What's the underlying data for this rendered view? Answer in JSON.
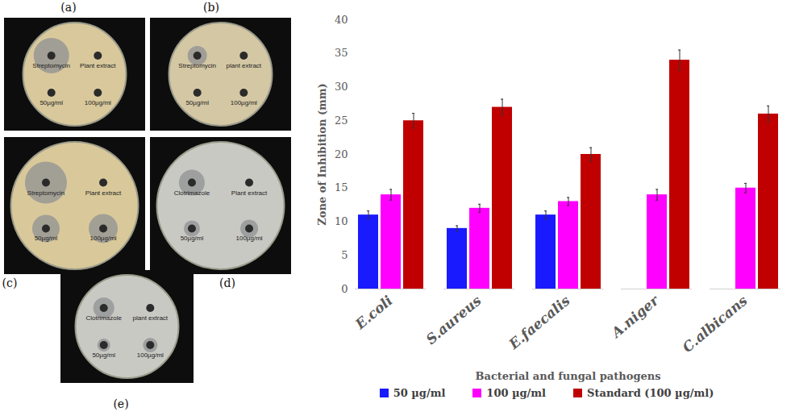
{
  "chart_data": {
    "type": "bar",
    "categories": [
      "E.coli",
      "S.aureus",
      "E.faecalis",
      "A.niger",
      "C.albicans"
    ],
    "x_label": "Bacterial and fungal pathogens",
    "y_label": "Zone of Inhibition (mm)",
    "series": [
      {
        "name": "50 µg/ml",
        "color": "#1a1aff",
        "values": [
          11,
          9,
          11,
          null,
          null
        ],
        "errors": [
          0.6,
          0.4,
          0.6,
          null,
          null
        ]
      },
      {
        "name": "100 µg/ml",
        "color": "#ff00ff",
        "values": [
          14,
          12,
          13,
          14,
          15
        ],
        "errors": [
          0.8,
          0.6,
          0.6,
          0.8,
          0.7
        ]
      },
      {
        "name": "Standard (100 µg/ml)",
        "color": "#c00000",
        "values": [
          25,
          27,
          20,
          34,
          26
        ],
        "errors": [
          1.1,
          1.2,
          1.0,
          1.5,
          1.2
        ]
      }
    ],
    "ylim": [
      0,
      40
    ],
    "yticks": [
      0,
      5,
      10,
      15,
      20,
      25,
      30,
      35,
      40
    ],
    "grid": false,
    "legend": "bottom"
  },
  "panels": [
    {
      "label": "(a)",
      "wells": [
        "Streptomycin",
        "Plant extract",
        "50µg/ml",
        "100µg/ml"
      ]
    },
    {
      "label": "(b)",
      "wells": [
        "Streptomycin",
        "plant extract",
        "50µg/ml",
        "100µg/ml"
      ]
    },
    {
      "label": "(c)",
      "wells": [
        "Streptomycin",
        "Plant extract",
        "50µg/ml",
        "100µg/ml"
      ]
    },
    {
      "label": "(d)",
      "wells": [
        "Clotrimazole",
        "Plant extract",
        "50µg/ml",
        "100µg/ml"
      ]
    },
    {
      "label": "(e)",
      "wells": [
        "Clotrimazole",
        "plant extract",
        "50µg/ml",
        "100µg/ml"
      ]
    }
  ]
}
